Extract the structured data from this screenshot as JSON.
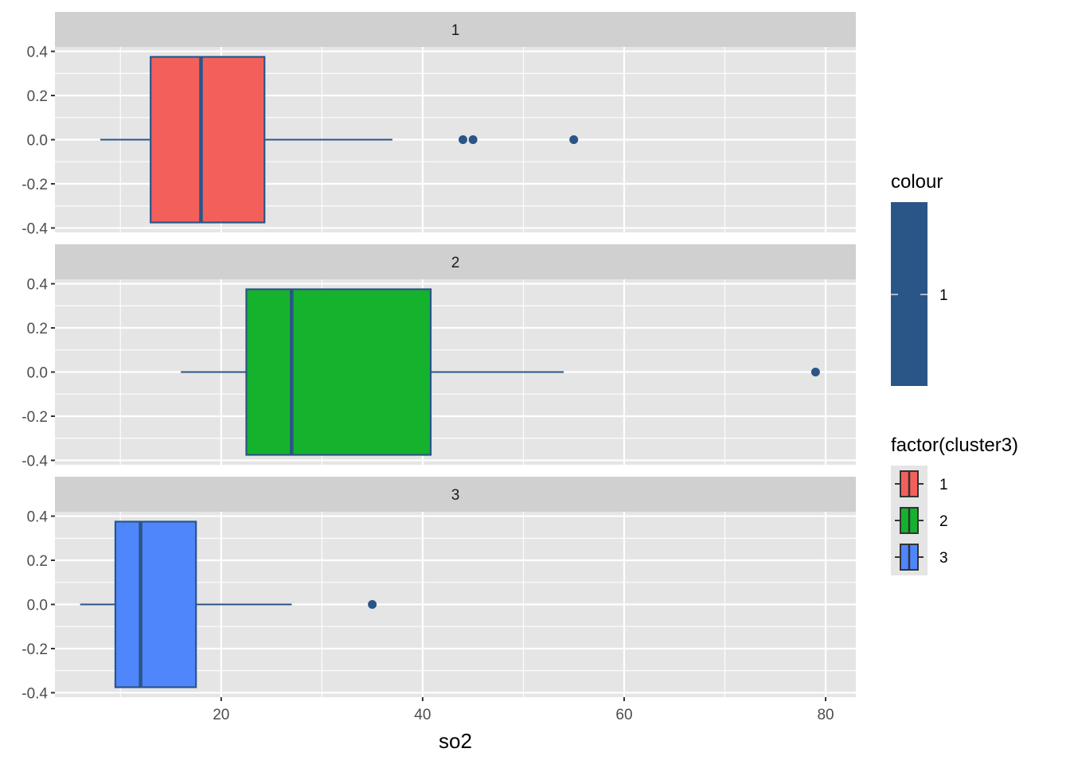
{
  "chart_data": {
    "type": "boxplot",
    "facet_by": "cluster3",
    "xlabel": "so2",
    "ylabel": "",
    "xlim": [
      3.5,
      83
    ],
    "ylim": [
      -0.42,
      0.42
    ],
    "xticks": [
      20,
      40,
      60,
      80
    ],
    "xtick_labels": [
      "20",
      "40",
      "60",
      "80"
    ],
    "yticks": [
      0.4,
      0.2,
      0.0,
      -0.2,
      -0.4
    ],
    "ytick_labels": [
      "0.4",
      "0.2",
      "0.0",
      "-0.2",
      "-0.4"
    ],
    "box_ymin": -0.375,
    "box_ymax": 0.375,
    "outline_color": "#2A5587",
    "panel_background": "#E5E5E5",
    "strip_background": "#D0D0D0",
    "grid": true,
    "facets": [
      {
        "label": "1",
        "fill": "#F3605B",
        "whisker_low": 8,
        "q1": 13,
        "median": 18,
        "q3": 24.3,
        "whisker_high": 37,
        "outliers": [
          44,
          45,
          55
        ]
      },
      {
        "label": "2",
        "fill": "#15B22E",
        "whisker_low": 16,
        "q1": 22.5,
        "median": 27,
        "q3": 40.8,
        "whisker_high": 54,
        "outliers": [
          79
        ]
      },
      {
        "label": "3",
        "fill": "#4F86FC",
        "whisker_low": 6,
        "q1": 9.5,
        "median": 12,
        "q3": 17.5,
        "whisker_high": 27,
        "outliers": [
          35
        ]
      }
    ],
    "legends": {
      "colour": {
        "title": "colour",
        "label": "1",
        "color": "#2A5587"
      },
      "fill": {
        "title": "factor(cluster3)",
        "entries": [
          {
            "label": "1",
            "color": "#F3605B"
          },
          {
            "label": "2",
            "color": "#15B22E"
          },
          {
            "label": "3",
            "color": "#4F86FC"
          }
        ]
      }
    }
  }
}
